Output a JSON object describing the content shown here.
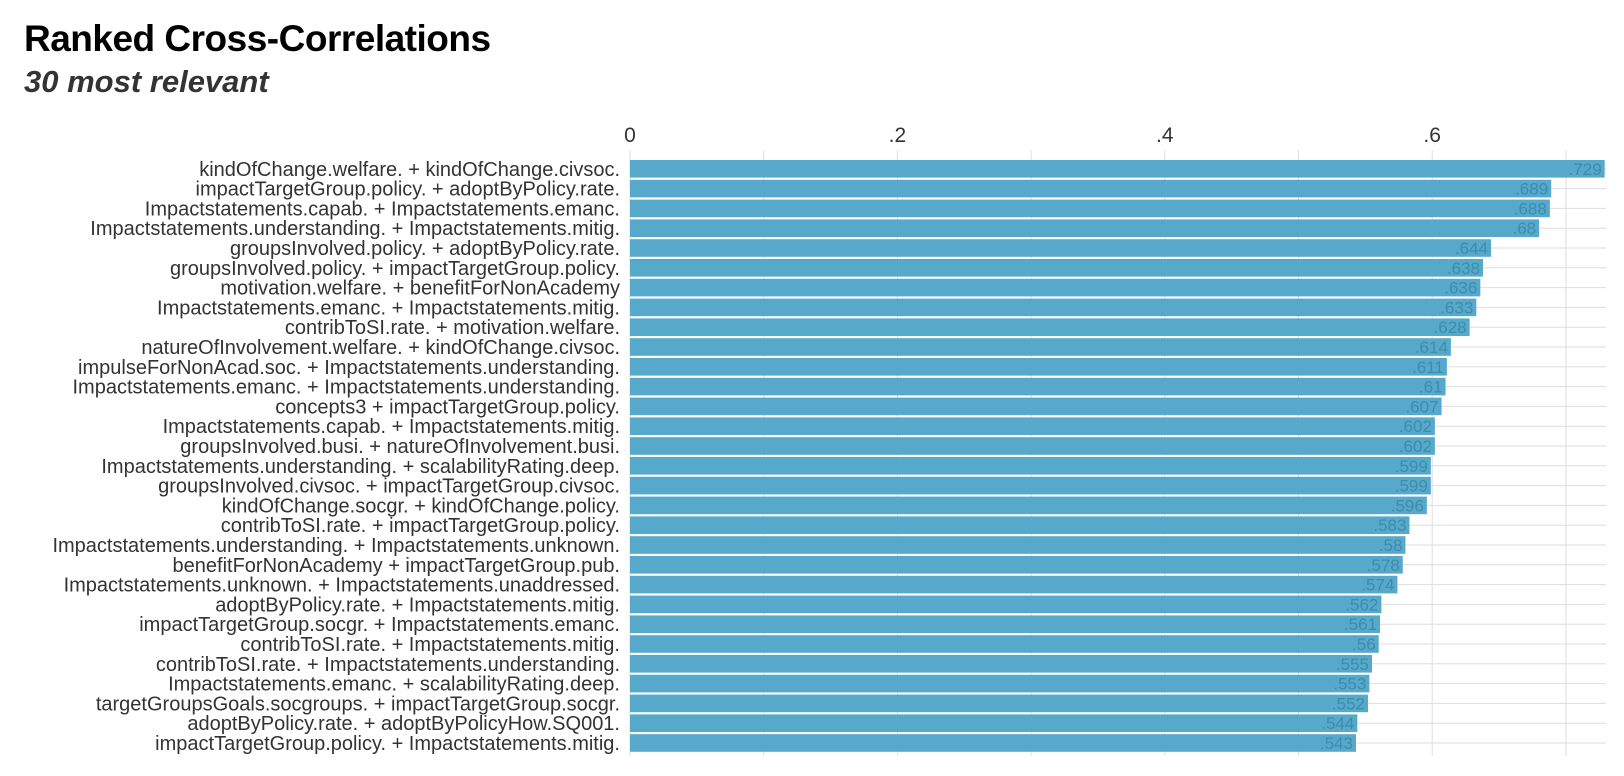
{
  "chart_data": {
    "type": "bar",
    "orientation": "horizontal",
    "title": "Ranked Cross-Correlations",
    "subtitle": "30 most relevant",
    "xlabel": "",
    "ylabel": "",
    "xlim": [
      0,
      0.73
    ],
    "x_ticks": [
      0,
      0.2,
      0.4,
      0.6
    ],
    "x_tick_labels": [
      "0",
      ".2",
      ".4",
      ".6"
    ],
    "x_axis_position": "top",
    "grid": true,
    "colors": {
      "bar": "#56a9cb",
      "grid": "#dedede",
      "label_text": "#333333",
      "value_text": "#3d8cac"
    },
    "categories": [
      "kindOfChange.welfare. + kindOfChange.civsoc.",
      "impactTargetGroup.policy. + adoptByPolicy.rate.",
      "Impactstatements.capab. + Impactstatements.emanc.",
      "Impactstatements.understanding. + Impactstatements.mitig.",
      "groupsInvolved.policy. + adoptByPolicy.rate.",
      "groupsInvolved.policy. + impactTargetGroup.policy.",
      "motivation.welfare. + benefitForNonAcademy",
      "Impactstatements.emanc. + Impactstatements.mitig.",
      "contribToSI.rate. + motivation.welfare.",
      "natureOfInvolvement.welfare. + kindOfChange.civsoc.",
      "impulseForNonAcad.soc. + Impactstatements.understanding.",
      "Impactstatements.emanc. + Impactstatements.understanding.",
      "concepts3 + impactTargetGroup.policy.",
      "Impactstatements.capab. + Impactstatements.mitig.",
      "groupsInvolved.busi. + natureOfInvolvement.busi.",
      "Impactstatements.understanding. + scalabilityRating.deep.",
      "groupsInvolved.civsoc. + impactTargetGroup.civsoc.",
      "kindOfChange.socgr. + kindOfChange.policy.",
      "contribToSI.rate. + impactTargetGroup.policy.",
      "Impactstatements.understanding. + Impactstatements.unknown.",
      "benefitForNonAcademy + impactTargetGroup.pub.",
      "Impactstatements.unknown. + Impactstatements.unaddressed.",
      "adoptByPolicy.rate. + Impactstatements.mitig.",
      "impactTargetGroup.socgr. + Impactstatements.emanc.",
      "contribToSI.rate. + Impactstatements.mitig.",
      "contribToSI.rate. + Impactstatements.understanding.",
      "Impactstatements.emanc. + scalabilityRating.deep.",
      "targetGroupsGoals.socgroups. + impactTargetGroup.socgr.",
      "adoptByPolicy.rate. + adoptByPolicyHow.SQ001.",
      "impactTargetGroup.policy. + Impactstatements.mitig."
    ],
    "values": [
      0.729,
      0.689,
      0.688,
      0.68,
      0.644,
      0.638,
      0.636,
      0.633,
      0.628,
      0.614,
      0.611,
      0.61,
      0.607,
      0.602,
      0.602,
      0.599,
      0.599,
      0.596,
      0.583,
      0.58,
      0.578,
      0.574,
      0.562,
      0.561,
      0.56,
      0.555,
      0.553,
      0.552,
      0.544,
      0.543
    ],
    "data_labels": [
      ".729",
      ".689",
      ".688",
      ".68",
      ".644",
      ".638",
      ".636",
      ".633",
      ".628",
      ".614",
      ".611",
      ".61",
      ".607",
      ".602",
      ".602",
      ".599",
      ".599",
      ".596",
      ".583",
      ".58",
      ".578",
      ".574",
      ".562",
      ".561",
      ".56",
      ".555",
      ".553",
      ".552",
      ".544",
      ".543"
    ]
  }
}
